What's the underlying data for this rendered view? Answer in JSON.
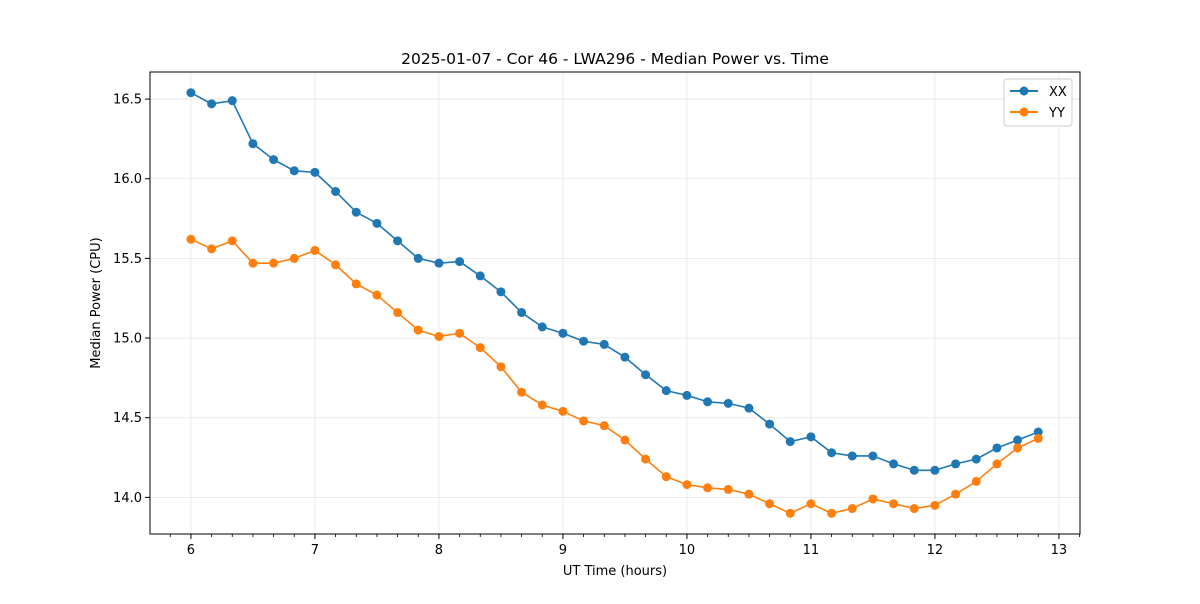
{
  "chart_data": {
    "type": "line",
    "title": "2025-01-07 - Cor 46 - LWA296 - Median Power vs. Time",
    "xlabel": "UT Time (hours)",
    "ylabel": "Median Power (CPU)",
    "xlim": [
      5.67,
      13.17
    ],
    "ylim": [
      13.77,
      16.67
    ],
    "xticks": [
      6,
      7,
      8,
      9,
      10,
      11,
      12,
      13
    ],
    "yticks": [
      14.0,
      14.5,
      15.0,
      15.5,
      16.0,
      16.5
    ],
    "xtick_labels": [
      "6",
      "7",
      "8",
      "9",
      "10",
      "11",
      "12",
      "13"
    ],
    "ytick_labels": [
      "14.0",
      "14.5",
      "15.0",
      "15.5",
      "16.0",
      "16.5"
    ],
    "grid": true,
    "legend_position": "top-right",
    "x": [
      6.0,
      6.1667,
      6.3333,
      6.5,
      6.6667,
      6.8333,
      7.0,
      7.1667,
      7.3333,
      7.5,
      7.6667,
      7.8333,
      8.0,
      8.1667,
      8.3333,
      8.5,
      8.6667,
      8.8333,
      9.0,
      9.1667,
      9.3333,
      9.5,
      9.6667,
      9.8333,
      10.0,
      10.1667,
      10.3333,
      10.5,
      10.6667,
      10.8333,
      11.0,
      11.1667,
      11.3333,
      11.5,
      11.6667,
      11.8333,
      12.0,
      12.1667,
      12.3333,
      12.5,
      12.6667,
      12.8333
    ],
    "series": [
      {
        "name": "XX",
        "color": "#1f77b4",
        "values": [
          16.54,
          16.47,
          16.49,
          16.22,
          16.12,
          16.05,
          16.04,
          15.92,
          15.79,
          15.72,
          15.61,
          15.5,
          15.47,
          15.48,
          15.39,
          15.29,
          15.16,
          15.07,
          15.03,
          14.98,
          14.96,
          14.88,
          14.77,
          14.67,
          14.64,
          14.6,
          14.59,
          14.56,
          14.46,
          14.35,
          14.38,
          14.28,
          14.26,
          14.26,
          14.21,
          14.17,
          14.17,
          14.21,
          14.24,
          14.31,
          14.36,
          14.41
        ]
      },
      {
        "name": "YY",
        "color": "#ff7f0e",
        "values": [
          15.62,
          15.56,
          15.61,
          15.47,
          15.47,
          15.5,
          15.55,
          15.46,
          15.34,
          15.27,
          15.16,
          15.05,
          15.01,
          15.03,
          14.94,
          14.82,
          14.66,
          14.58,
          14.54,
          14.48,
          14.45,
          14.36,
          14.24,
          14.13,
          14.08,
          14.06,
          14.05,
          14.02,
          13.96,
          13.9,
          13.96,
          13.9,
          13.93,
          13.99,
          13.96,
          13.93,
          13.95,
          14.02,
          14.1,
          14.21,
          14.31,
          14.37
        ]
      }
    ]
  }
}
